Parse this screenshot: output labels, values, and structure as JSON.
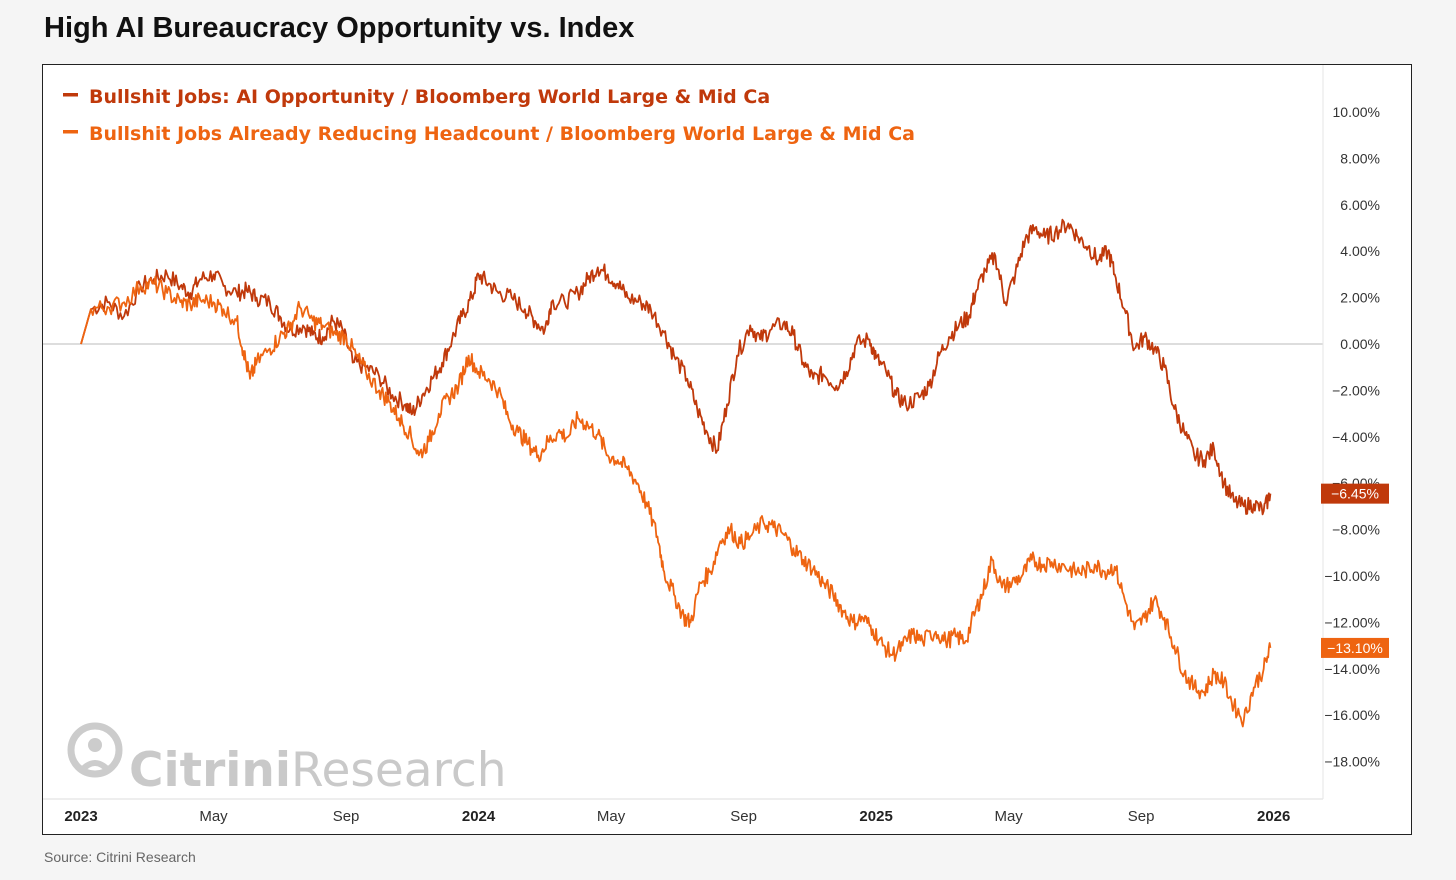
{
  "title": "High AI Bureaucracy Opportunity vs. Index",
  "source": "Source: Citrini Research",
  "watermark": {
    "bold_part": "Citrini",
    "light_part": "Research"
  },
  "colors": {
    "series1": "#c0390b",
    "series2": "#ee6411",
    "zero_line": "#bbbbbb",
    "watermark": "#cccccc"
  },
  "chart_data": {
    "type": "line",
    "title": "High AI Bureaucracy Opportunity vs. Index",
    "xlabel": "",
    "ylabel": "",
    "x_unit": "month index (0 = Jan 2023)",
    "xlim": [
      0,
      36
    ],
    "ylim": [
      -19.5,
      12
    ],
    "y_ticks": [
      {
        "value": 10,
        "label": "10.00%"
      },
      {
        "value": 8,
        "label": "8.00%"
      },
      {
        "value": 6,
        "label": "6.00%"
      },
      {
        "value": 4,
        "label": "4.00%"
      },
      {
        "value": 2,
        "label": "2.00%"
      },
      {
        "value": 0,
        "label": "0.00%"
      },
      {
        "value": -2,
        "label": "−2.00%"
      },
      {
        "value": -4,
        "label": "−4.00%"
      },
      {
        "value": -6,
        "label": "−6.00%"
      },
      {
        "value": -8,
        "label": "−8.00%"
      },
      {
        "value": -10,
        "label": "−10.00%"
      },
      {
        "value": -12,
        "label": "−12.00%"
      },
      {
        "value": -14,
        "label": "−14.00%"
      },
      {
        "value": -16,
        "label": "−16.00%"
      },
      {
        "value": -18,
        "label": "−18.00%"
      }
    ],
    "x_ticks": [
      {
        "value": 0,
        "label": "2023",
        "bold": true
      },
      {
        "value": 4,
        "label": "May",
        "bold": false
      },
      {
        "value": 8,
        "label": "Sep",
        "bold": false
      },
      {
        "value": 12,
        "label": "2024",
        "bold": true
      },
      {
        "value": 16,
        "label": "May",
        "bold": false
      },
      {
        "value": 20,
        "label": "Sep",
        "bold": false
      },
      {
        "value": 24,
        "label": "2025",
        "bold": true
      },
      {
        "value": 28,
        "label": "May",
        "bold": false
      },
      {
        "value": 32,
        "label": "Sep",
        "bold": false
      },
      {
        "value": 36,
        "label": "2026",
        "bold": true
      }
    ],
    "zero_line": 0,
    "legend": "top-left",
    "series": [
      {
        "name": "Bullshit Jobs: AI Opportunity / Bloomberg World Large & Mid Ca",
        "color": "#c0390b",
        "last_label": "−6.45%",
        "points": [
          [
            0,
            0
          ],
          [
            0.3,
            1.5
          ],
          [
            0.8,
            1.8
          ],
          [
            1.3,
            1.2
          ],
          [
            1.8,
            2.5
          ],
          [
            2.2,
            2.8
          ],
          [
            2.6,
            3.0
          ],
          [
            3.0,
            2.5
          ],
          [
            3.3,
            2.2
          ],
          [
            3.6,
            2.8
          ],
          [
            4.0,
            3.0
          ],
          [
            4.3,
            2.5
          ],
          [
            4.7,
            2.2
          ],
          [
            5.0,
            2.3
          ],
          [
            5.3,
            2.0
          ],
          [
            5.7,
            1.8
          ],
          [
            6.0,
            1.2
          ],
          [
            6.3,
            0.6
          ],
          [
            6.7,
            0.8
          ],
          [
            7.0,
            0.4
          ],
          [
            7.3,
            0.3
          ],
          [
            7.6,
            1.0
          ],
          [
            7.9,
            0.6
          ],
          [
            8.2,
            -0.8
          ],
          [
            8.6,
            -1.0
          ],
          [
            9.0,
            -1.4
          ],
          [
            9.4,
            -2.2
          ],
          [
            9.8,
            -2.6
          ],
          [
            10.0,
            -3.0
          ],
          [
            10.3,
            -2.2
          ],
          [
            10.6,
            -1.5
          ],
          [
            10.9,
            -0.8
          ],
          [
            11.2,
            0.2
          ],
          [
            11.5,
            1.2
          ],
          [
            11.8,
            2.0
          ],
          [
            12.0,
            3.0
          ],
          [
            12.3,
            2.6
          ],
          [
            12.6,
            2.2
          ],
          [
            13.0,
            2.0
          ],
          [
            13.4,
            1.5
          ],
          [
            13.7,
            1.0
          ],
          [
            14.0,
            0.6
          ],
          [
            14.2,
            1.8
          ],
          [
            14.6,
            1.8
          ],
          [
            15.0,
            2.2
          ],
          [
            15.3,
            2.8
          ],
          [
            15.6,
            3.3
          ],
          [
            15.9,
            3.0
          ],
          [
            16.2,
            2.6
          ],
          [
            16.5,
            2.0
          ],
          [
            16.9,
            1.8
          ],
          [
            17.2,
            1.5
          ],
          [
            17.6,
            0.5
          ],
          [
            17.9,
            -0.5
          ],
          [
            18.3,
            -1.5
          ],
          [
            18.6,
            -2.8
          ],
          [
            18.9,
            -3.8
          ],
          [
            19.2,
            -4.6
          ],
          [
            19.5,
            -2.6
          ],
          [
            19.8,
            -0.5
          ],
          [
            20.2,
            0.8
          ],
          [
            20.5,
            0.2
          ],
          [
            20.8,
            0.6
          ],
          [
            21.2,
            0.9
          ],
          [
            21.5,
            0.4
          ],
          [
            21.8,
            -0.8
          ],
          [
            22.1,
            -1.5
          ],
          [
            22.4,
            -1.3
          ],
          [
            22.8,
            -1.8
          ],
          [
            23.1,
            -1.2
          ],
          [
            23.4,
            0.0
          ],
          [
            23.8,
            0.2
          ],
          [
            24.0,
            -0.6
          ],
          [
            24.3,
            -1.2
          ],
          [
            24.6,
            -2.2
          ],
          [
            24.9,
            -2.6
          ],
          [
            25.3,
            -2.3
          ],
          [
            25.6,
            -1.8
          ],
          [
            25.9,
            -0.5
          ],
          [
            26.2,
            0.3
          ],
          [
            26.5,
            0.8
          ],
          [
            26.8,
            1.2
          ],
          [
            27.0,
            2.2
          ],
          [
            27.3,
            3.2
          ],
          [
            27.6,
            3.8
          ],
          [
            27.9,
            1.8
          ],
          [
            28.2,
            3.0
          ],
          [
            28.5,
            4.5
          ],
          [
            28.8,
            5.0
          ],
          [
            29.1,
            4.6
          ],
          [
            29.4,
            4.8
          ],
          [
            29.8,
            5.2
          ],
          [
            30.1,
            4.6
          ],
          [
            30.4,
            4.2
          ],
          [
            30.7,
            3.6
          ],
          [
            31.0,
            4.0
          ],
          [
            31.2,
            3.0
          ],
          [
            31.5,
            1.5
          ],
          [
            31.8,
            -0.2
          ],
          [
            32.1,
            0.3
          ],
          [
            32.4,
            -0.2
          ],
          [
            32.7,
            -1.0
          ],
          [
            33.0,
            -2.8
          ],
          [
            33.3,
            -3.8
          ],
          [
            33.6,
            -4.8
          ],
          [
            33.9,
            -5.0
          ],
          [
            34.2,
            -4.5
          ],
          [
            34.5,
            -6.0
          ],
          [
            34.8,
            -6.8
          ],
          [
            35.1,
            -7.0
          ],
          [
            35.4,
            -6.9
          ],
          [
            35.7,
            -7.2
          ],
          [
            35.9,
            -6.45
          ]
        ]
      },
      {
        "name": "Bullshit Jobs Already Reducing Headcount / Bloomberg World Large & Mid Ca",
        "color": "#ee6411",
        "last_label": "−13.10%",
        "points": [
          [
            0,
            0
          ],
          [
            0.3,
            1.5
          ],
          [
            0.8,
            1.6
          ],
          [
            1.3,
            1.8
          ],
          [
            1.8,
            2.5
          ],
          [
            2.2,
            2.6
          ],
          [
            2.6,
            2.2
          ],
          [
            3.0,
            1.8
          ],
          [
            3.3,
            1.7
          ],
          [
            3.6,
            1.9
          ],
          [
            4.0,
            1.8
          ],
          [
            4.3,
            1.5
          ],
          [
            4.7,
            1.0
          ],
          [
            4.9,
            -0.3
          ],
          [
            5.1,
            -1.5
          ],
          [
            5.3,
            -0.8
          ],
          [
            5.7,
            -0.2
          ],
          [
            6.0,
            0.3
          ],
          [
            6.3,
            0.7
          ],
          [
            6.6,
            1.6
          ],
          [
            7.0,
            1.0
          ],
          [
            7.3,
            0.8
          ],
          [
            7.7,
            0.4
          ],
          [
            8.0,
            0.3
          ],
          [
            8.3,
            -0.5
          ],
          [
            8.6,
            -1.2
          ],
          [
            9.0,
            -2.0
          ],
          [
            9.3,
            -2.5
          ],
          [
            9.6,
            -3.2
          ],
          [
            9.9,
            -3.8
          ],
          [
            10.2,
            -4.8
          ],
          [
            10.5,
            -4.2
          ],
          [
            10.8,
            -3.0
          ],
          [
            11.1,
            -2.3
          ],
          [
            11.4,
            -1.8
          ],
          [
            11.7,
            -0.5
          ],
          [
            12.0,
            -1.2
          ],
          [
            12.3,
            -1.5
          ],
          [
            12.6,
            -2.0
          ],
          [
            12.9,
            -3.2
          ],
          [
            13.2,
            -3.8
          ],
          [
            13.5,
            -4.3
          ],
          [
            13.8,
            -4.8
          ],
          [
            14.1,
            -4.2
          ],
          [
            14.4,
            -3.8
          ],
          [
            14.7,
            -4.0
          ],
          [
            15.0,
            -3.2
          ],
          [
            15.3,
            -3.5
          ],
          [
            15.6,
            -3.9
          ],
          [
            15.9,
            -4.8
          ],
          [
            16.2,
            -5.0
          ],
          [
            16.5,
            -5.4
          ],
          [
            16.8,
            -6.0
          ],
          [
            17.1,
            -7.0
          ],
          [
            17.4,
            -8.3
          ],
          [
            17.6,
            -9.8
          ],
          [
            17.9,
            -10.8
          ],
          [
            18.2,
            -11.8
          ],
          [
            18.4,
            -12.0
          ],
          [
            18.7,
            -10.3
          ],
          [
            19.0,
            -9.8
          ],
          [
            19.3,
            -8.5
          ],
          [
            19.6,
            -8.0
          ],
          [
            19.9,
            -8.6
          ],
          [
            20.2,
            -8.3
          ],
          [
            20.6,
            -7.7
          ],
          [
            20.9,
            -7.9
          ],
          [
            21.2,
            -8.2
          ],
          [
            21.5,
            -8.8
          ],
          [
            21.8,
            -9.3
          ],
          [
            22.1,
            -9.7
          ],
          [
            22.4,
            -10.3
          ],
          [
            22.7,
            -10.8
          ],
          [
            23.0,
            -11.5
          ],
          [
            23.3,
            -12.0
          ],
          [
            23.6,
            -11.8
          ],
          [
            23.9,
            -12.3
          ],
          [
            24.2,
            -13.0
          ],
          [
            24.5,
            -13.4
          ],
          [
            24.8,
            -13.0
          ],
          [
            25.1,
            -12.5
          ],
          [
            25.4,
            -12.8
          ],
          [
            25.8,
            -12.4
          ],
          [
            26.1,
            -12.8
          ],
          [
            26.4,
            -12.6
          ],
          [
            26.7,
            -12.8
          ],
          [
            27.0,
            -11.5
          ],
          [
            27.2,
            -10.8
          ],
          [
            27.5,
            -9.3
          ],
          [
            27.8,
            -10.5
          ],
          [
            28.1,
            -10.3
          ],
          [
            28.4,
            -10.0
          ],
          [
            28.7,
            -9.3
          ],
          [
            29.0,
            -9.5
          ],
          [
            29.3,
            -9.4
          ],
          [
            29.7,
            -9.6
          ],
          [
            30.0,
            -9.8
          ],
          [
            30.3,
            -9.8
          ],
          [
            30.6,
            -9.5
          ],
          [
            30.9,
            -9.8
          ],
          [
            31.2,
            -9.6
          ],
          [
            31.5,
            -11.0
          ],
          [
            31.8,
            -12.3
          ],
          [
            32.1,
            -11.8
          ],
          [
            32.4,
            -11.0
          ],
          [
            32.7,
            -11.8
          ],
          [
            33.0,
            -13.0
          ],
          [
            33.3,
            -14.2
          ],
          [
            33.6,
            -14.8
          ],
          [
            33.9,
            -15.0
          ],
          [
            34.2,
            -14.2
          ],
          [
            34.5,
            -14.6
          ],
          [
            34.8,
            -15.6
          ],
          [
            35.1,
            -16.2
          ],
          [
            35.4,
            -14.8
          ],
          [
            35.7,
            -14.0
          ],
          [
            35.9,
            -13.1
          ]
        ]
      }
    ]
  }
}
